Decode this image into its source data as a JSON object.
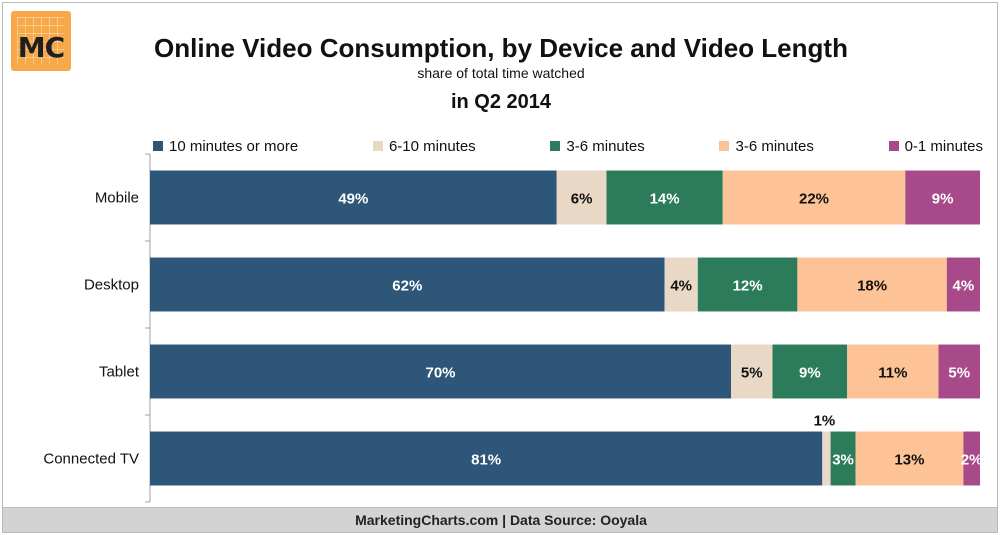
{
  "logo": {
    "text": "MC"
  },
  "header": {
    "title": "Online Video Consumption, by Device and Video Length",
    "subtitle": "share of total time watched",
    "period": "in Q2 2014"
  },
  "footer": {
    "text": "MarketingCharts.com | Data Source: Ooyala"
  },
  "colors": {
    "series": [
      "#2e5678",
      "#e8d8c5",
      "#2c7c5c",
      "#fdc396",
      "#a84a8a"
    ],
    "axis": "#a0a0a0"
  },
  "chart_data": {
    "type": "bar",
    "orientation": "horizontal",
    "stacked": true,
    "title": "Online Video Consumption, by Device and Video Length",
    "subtitle": "share of total time watched",
    "categories": [
      "Mobile",
      "Desktop",
      "Tablet",
      "Connected TV"
    ],
    "series": [
      {
        "name": "10 minutes or more",
        "values": [
          49,
          62,
          70,
          81
        ]
      },
      {
        "name": "6-10 minutes",
        "values": [
          6,
          4,
          5,
          1
        ]
      },
      {
        "name": "3-6 minutes",
        "values": [
          14,
          12,
          9,
          3
        ]
      },
      {
        "name": "3-6 minutes",
        "values": [
          22,
          18,
          11,
          13
        ]
      },
      {
        "name": "0-1 minutes",
        "values": [
          9,
          4,
          5,
          2
        ]
      }
    ],
    "xlim": [
      0,
      100
    ],
    "legend": "top",
    "grid": false,
    "unit": "%"
  }
}
